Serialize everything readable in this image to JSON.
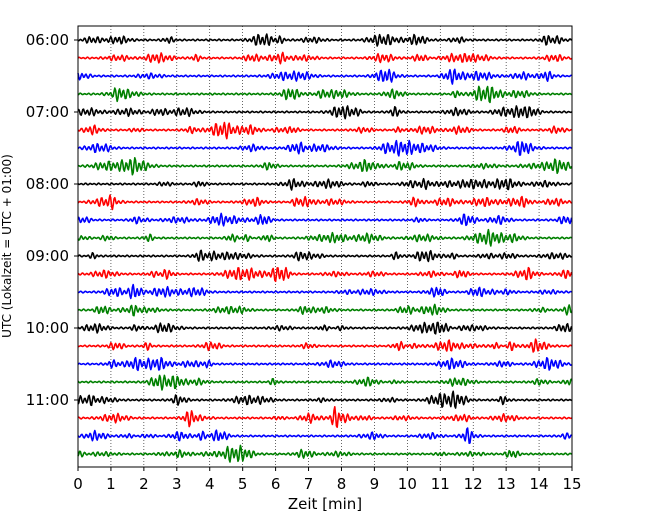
{
  "chart_data": {
    "type": "line",
    "subtype": "helicorder",
    "xlabel": "Zeit  [min]",
    "ylabel": "UTC (Lokalzeit = UTC + 01:00)",
    "xlim": [
      0,
      15
    ],
    "x_ticks": [
      "0",
      "1",
      "2",
      "3",
      "4",
      "5",
      "6",
      "7",
      "8",
      "9",
      "10",
      "11",
      "12",
      "13",
      "14",
      "15"
    ],
    "y_tick_labels": [
      "06:00",
      "07:00",
      "08:00",
      "09:00",
      "10:00",
      "11:00"
    ],
    "grid": "vertical dotted at each minute",
    "trace_interval_min": 15,
    "trace_count": 24,
    "trace_colors": [
      "#000000",
      "#ff0000",
      "#0000ff",
      "#008000"
    ],
    "traces": [
      {
        "start": "06:00",
        "color": "#000000"
      },
      {
        "start": "06:15",
        "color": "#ff0000"
      },
      {
        "start": "06:30",
        "color": "#0000ff"
      },
      {
        "start": "06:45",
        "color": "#008000"
      },
      {
        "start": "07:00",
        "color": "#000000"
      },
      {
        "start": "07:15",
        "color": "#ff0000"
      },
      {
        "start": "07:30",
        "color": "#0000ff"
      },
      {
        "start": "07:45",
        "color": "#008000"
      },
      {
        "start": "08:00",
        "color": "#000000"
      },
      {
        "start": "08:15",
        "color": "#ff0000"
      },
      {
        "start": "08:30",
        "color": "#0000ff"
      },
      {
        "start": "08:45",
        "color": "#008000"
      },
      {
        "start": "09:00",
        "color": "#000000"
      },
      {
        "start": "09:15",
        "color": "#ff0000"
      },
      {
        "start": "09:30",
        "color": "#0000ff"
      },
      {
        "start": "09:45",
        "color": "#008000"
      },
      {
        "start": "10:00",
        "color": "#000000"
      },
      {
        "start": "10:15",
        "color": "#ff0000"
      },
      {
        "start": "10:30",
        "color": "#0000ff"
      },
      {
        "start": "10:45",
        "color": "#008000"
      },
      {
        "start": "11:00",
        "color": "#000000"
      },
      {
        "start": "11:15",
        "color": "#ff0000"
      },
      {
        "start": "11:30",
        "color": "#0000ff"
      },
      {
        "start": "11:45",
        "color": "#008000"
      }
    ]
  }
}
